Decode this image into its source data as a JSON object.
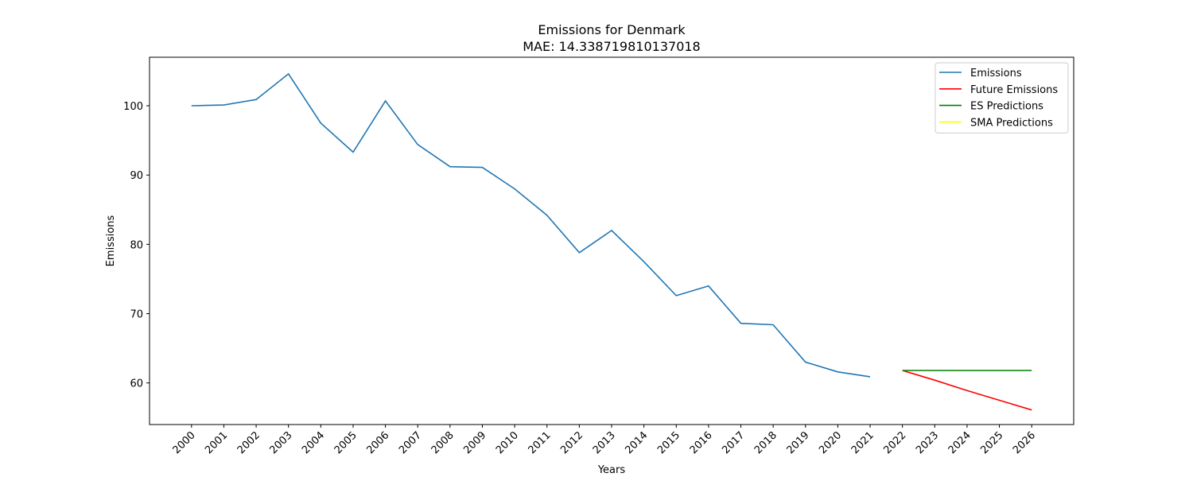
{
  "chart_data": {
    "type": "line",
    "title": "Emissions for Denmark",
    "subtitle": "MAE: 14.338719810137018",
    "xlabel": "Years",
    "ylabel": "Emissions",
    "x_ticks": [
      "2000",
      "2001",
      "2002",
      "2003",
      "2004",
      "2005",
      "2006",
      "2007",
      "2008",
      "2009",
      "2010",
      "2011",
      "2012",
      "2013",
      "2014",
      "2015",
      "2016",
      "2017",
      "2018",
      "2019",
      "2020",
      "2021",
      "2022",
      "2023",
      "2024",
      "2025",
      "2026"
    ],
    "y_ticks": [
      60,
      70,
      80,
      90,
      100
    ],
    "xlim": [
      1998.7,
      2027.3
    ],
    "ylim": [
      54,
      107
    ],
    "legend_position": "top-right",
    "grid": false,
    "series": [
      {
        "name": "Emissions",
        "color": "#1f77b4",
        "x": [
          2000,
          2001,
          2002,
          2003,
          2004,
          2005,
          2006,
          2007,
          2008,
          2009,
          2010,
          2011,
          2012,
          2013,
          2014,
          2015,
          2016,
          2017,
          2018,
          2019,
          2020,
          2021
        ],
        "y": [
          100.0,
          100.1,
          100.9,
          104.6,
          97.5,
          93.3,
          100.7,
          94.4,
          91.2,
          91.1,
          88.0,
          84.2,
          78.8,
          82.0,
          77.5,
          72.6,
          74.0,
          68.6,
          68.4,
          63.0,
          61.6,
          60.9
        ]
      },
      {
        "name": "Future Emissions",
        "color": "#ff0000",
        "x": [
          2022,
          2023,
          2024,
          2025,
          2026
        ],
        "y": [
          61.8,
          60.4,
          58.9,
          57.5,
          56.1
        ]
      },
      {
        "name": "ES Predictions",
        "color": "#008000",
        "x": [
          2022,
          2023,
          2024,
          2025,
          2026
        ],
        "y": [
          61.8,
          61.8,
          61.8,
          61.8,
          61.8
        ]
      },
      {
        "name": "SMA Predictions",
        "color": "#ffff00",
        "x": [],
        "y": []
      }
    ]
  }
}
